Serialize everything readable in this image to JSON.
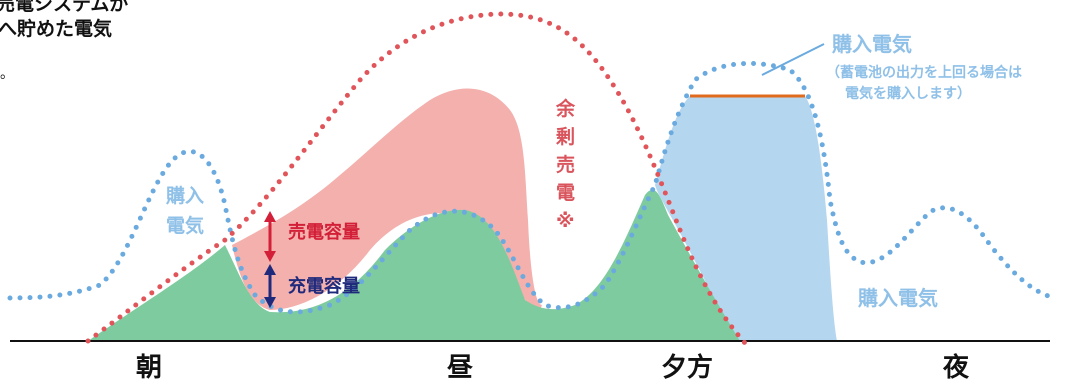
{
  "top_left_note": {
    "line1": "売電システムが",
    "line2": "へ貯めた電気",
    "mark": "。"
  },
  "labels": {
    "purchase_top": "購入電気",
    "purchase_note_line1": "（蓄電池の出力を上回る場合は",
    "purchase_note_line2": "電気を購入します）",
    "purchase_left_line1": "購入",
    "purchase_left_line2": "電気",
    "purchase_right": "購入電気",
    "surplus_vertical": [
      "余",
      "剰",
      "売",
      "電",
      "※"
    ],
    "sell_capacity": "売電容量",
    "charge_capacity": "充電容量"
  },
  "time_labels": [
    "朝",
    "昼",
    "夕方",
    "夜"
  ],
  "colors": {
    "solar_dotted": "#e0555a",
    "consumption_dotted": "#6aaadf",
    "surplus_fill": "#f3b0ad",
    "self_use_fill": "#7ecb9f",
    "battery_fill": "#b5d6ef",
    "purchase_text": "#8fc0e8",
    "sell_text": "#d31f37",
    "charge_text": "#1f2a7c",
    "orange_line": "#e06a1e",
    "sell_arrow": "#d31f37",
    "charge_arrow": "#1f2a7c"
  }
}
